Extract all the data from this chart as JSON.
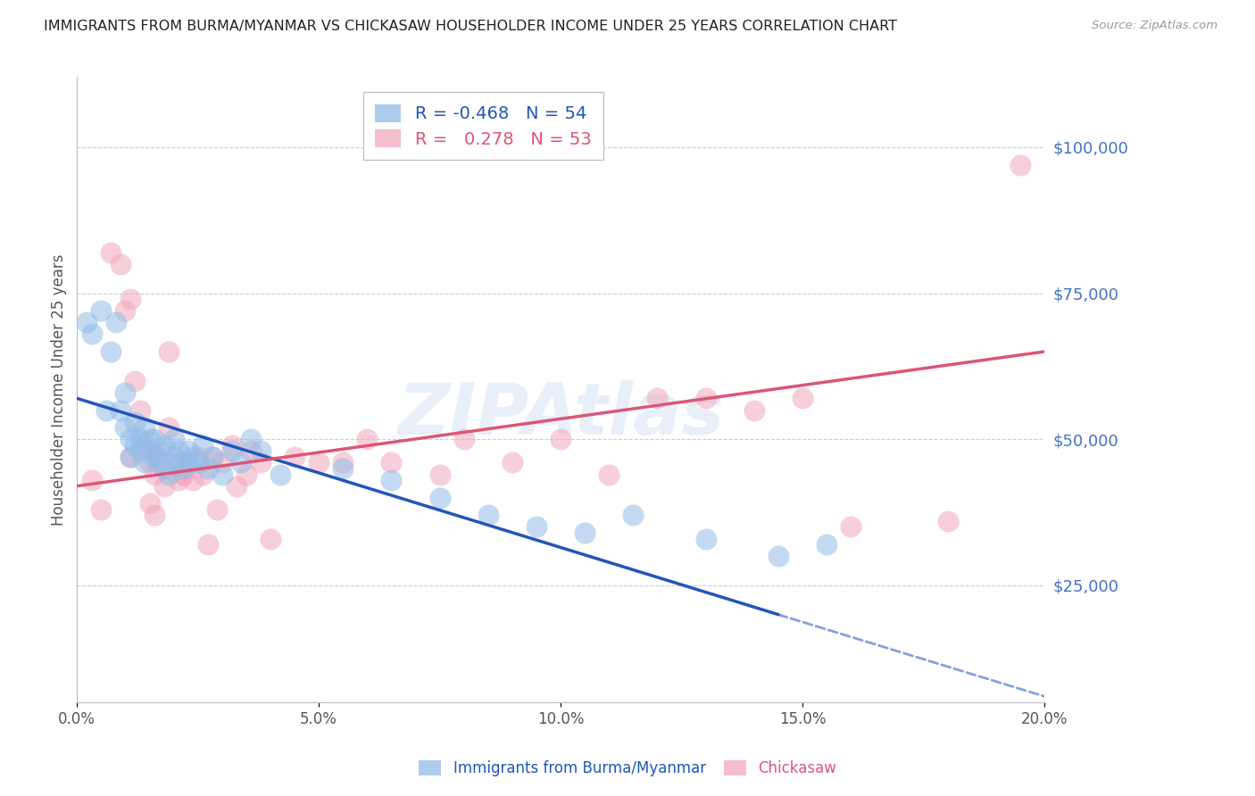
{
  "title": "IMMIGRANTS FROM BURMA/MYANMAR VS CHICKASAW HOUSEHOLDER INCOME UNDER 25 YEARS CORRELATION CHART",
  "source": "Source: ZipAtlas.com",
  "ylabel": "Householder Income Under 25 years",
  "xlabel_ticks": [
    "0.0%",
    "5.0%",
    "10.0%",
    "15.0%",
    "20.0%"
  ],
  "xlabel_vals": [
    0.0,
    5.0,
    10.0,
    15.0,
    20.0
  ],
  "ylabel_ticks": [
    "$25,000",
    "$50,000",
    "$75,000",
    "$100,000"
  ],
  "ylabel_vals": [
    25000,
    50000,
    75000,
    100000
  ],
  "xlim": [
    0.0,
    20.0
  ],
  "ylim": [
    5000,
    112000
  ],
  "legend_r_blue": "-0.468",
  "legend_n_blue": "54",
  "legend_r_pink": "0.278",
  "legend_n_pink": "53",
  "blue_color": "#92bce8",
  "pink_color": "#f2a8bc",
  "trend_blue": "#2255bb",
  "trend_pink": "#dd5577",
  "watermark": "ZIPAtlas",
  "blue_points_x": [
    0.2,
    0.3,
    0.5,
    0.6,
    0.7,
    0.8,
    0.9,
    1.0,
    1.0,
    1.1,
    1.1,
    1.2,
    1.2,
    1.3,
    1.3,
    1.4,
    1.4,
    1.5,
    1.5,
    1.6,
    1.6,
    1.7,
    1.7,
    1.8,
    1.8,
    1.9,
    2.0,
    2.0,
    2.1,
    2.1,
    2.2,
    2.3,
    2.3,
    2.4,
    2.5,
    2.6,
    2.7,
    2.8,
    3.0,
    3.2,
    3.4,
    3.6,
    3.8,
    4.2,
    5.5,
    6.5,
    7.5,
    8.5,
    9.5,
    10.5,
    11.5,
    13.0,
    14.5,
    15.5
  ],
  "blue_points_y": [
    70000,
    68000,
    72000,
    55000,
    65000,
    70000,
    55000,
    52000,
    58000,
    50000,
    47000,
    53000,
    49000,
    50000,
    48000,
    52000,
    46000,
    50000,
    48000,
    47000,
    50000,
    46000,
    48000,
    45000,
    49000,
    44000,
    47000,
    50000,
    46000,
    48000,
    45000,
    46000,
    48000,
    47000,
    46000,
    49000,
    45000,
    47000,
    44000,
    48000,
    46000,
    50000,
    48000,
    44000,
    45000,
    43000,
    40000,
    37000,
    35000,
    34000,
    37000,
    33000,
    30000,
    32000
  ],
  "pink_points_x": [
    0.3,
    0.5,
    0.7,
    0.9,
    1.0,
    1.1,
    1.2,
    1.3,
    1.4,
    1.5,
    1.6,
    1.7,
    1.8,
    1.9,
    2.0,
    2.1,
    2.2,
    2.3,
    2.4,
    2.5,
    2.6,
    2.8,
    3.0,
    3.2,
    3.5,
    3.8,
    4.0,
    4.5,
    5.0,
    5.5,
    6.0,
    6.5,
    7.5,
    8.0,
    9.0,
    10.0,
    11.0,
    12.0,
    13.0,
    14.0,
    15.0,
    16.0,
    18.0,
    19.5,
    2.7,
    3.3,
    1.5,
    1.6,
    2.9,
    1.1,
    1.9,
    3.6,
    2.2
  ],
  "pink_points_y": [
    43000,
    38000,
    82000,
    80000,
    72000,
    47000,
    60000,
    55000,
    49000,
    46000,
    44000,
    47000,
    42000,
    65000,
    46000,
    43000,
    44000,
    46000,
    43000,
    47000,
    44000,
    47000,
    46000,
    49000,
    44000,
    46000,
    33000,
    47000,
    46000,
    46000,
    50000,
    46000,
    44000,
    50000,
    46000,
    50000,
    44000,
    57000,
    57000,
    55000,
    57000,
    35000,
    36000,
    97000,
    32000,
    42000,
    39000,
    37000,
    38000,
    74000,
    52000,
    48000,
    44000
  ],
  "blue_trend_x0": 0.0,
  "blue_trend_y0": 57000,
  "blue_trend_x1": 14.5,
  "blue_trend_y1": 20000,
  "blue_dash_x0": 14.5,
  "blue_dash_y0": 20000,
  "blue_dash_x1": 20.0,
  "blue_dash_y1": 6000,
  "pink_trend_x0": 0.0,
  "pink_trend_y0": 42000,
  "pink_trend_x1": 20.0,
  "pink_trend_y1": 65000
}
